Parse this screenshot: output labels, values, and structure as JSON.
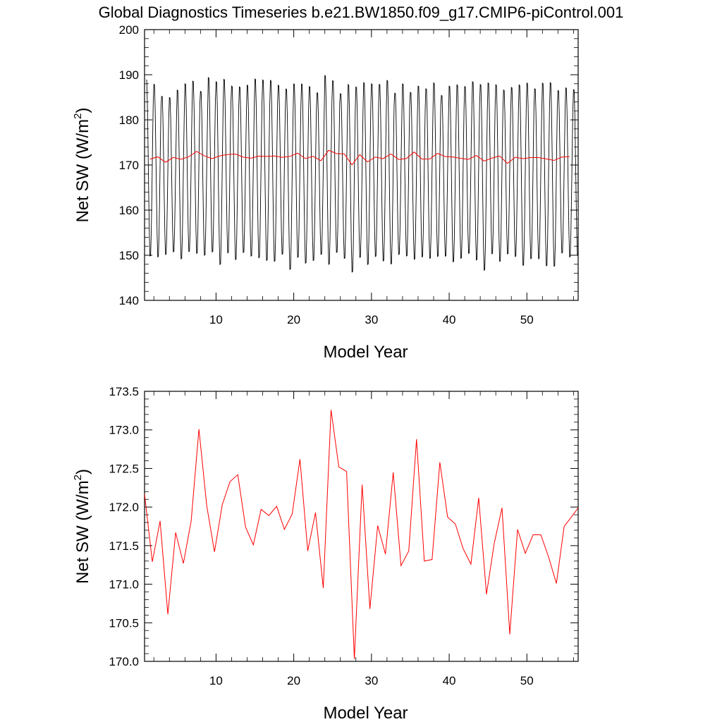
{
  "figure": {
    "title": "Global Diagnostics Timeseries b.e21.BW1850.f09_g17.CMIP6-piControl.001"
  },
  "chart_data": [
    {
      "type": "line",
      "xlabel": "Model Year",
      "ylabel": "Net SW (W/m",
      "ylabel_sup": "2",
      "ylabel_close": ")",
      "xlim": [
        0.8,
        56.6
      ],
      "ylim": [
        140,
        200
      ],
      "xticks": [
        10,
        20,
        30,
        40,
        50
      ],
      "xtick_labels": [
        "10",
        "20",
        "30",
        "40",
        "50"
      ],
      "yticks": [
        140,
        150,
        160,
        170,
        180,
        190,
        200
      ],
      "ytick_labels": [
        "140",
        "150",
        "160",
        "170",
        "180",
        "190",
        "200"
      ],
      "grid": false,
      "series": [
        {
          "color": "#000000",
          "kind": "monthly",
          "seasonal_max": [
            189.5,
            188.5,
            185.8,
            185.5,
            187.2,
            188.6,
            189.2,
            186.9,
            190.0,
            189.1,
            189.6,
            188.1,
            187.9,
            188.3,
            189.7,
            189.5,
            189.4,
            188.3,
            187.5,
            188.6,
            188.6,
            188.0,
            186.6,
            190.5,
            189.3,
            186.4,
            188.5,
            187.9,
            188.9,
            188.6,
            188.5,
            189.4,
            186.5,
            188.6,
            186.7,
            188.1,
            187.5,
            188.8,
            186.0,
            188.1,
            188.4,
            188.0,
            189.1,
            188.5,
            188.8,
            188.4,
            187.2,
            187.8,
            188.4,
            188.8,
            187.5,
            188.8,
            188.9,
            187.1,
            187.7,
            187.3
          ],
          "seasonal_min": [
            149.2,
            149.0,
            149.6,
            150.2,
            148.6,
            150.2,
            149.8,
            149.4,
            150.1,
            147.3,
            149.9,
            148.4,
            150.0,
            149.2,
            148.8,
            148.2,
            148.0,
            149.6,
            146.2,
            148.9,
            147.6,
            148.2,
            149.6,
            147.3,
            150.0,
            148.7,
            145.6,
            148.9,
            147.3,
            149.1,
            148.1,
            147.4,
            149.6,
            149.2,
            148.5,
            149.0,
            148.7,
            149.1,
            149.2,
            147.9,
            148.7,
            149.8,
            148.3,
            146.0,
            149.7,
            148.0,
            149.7,
            149.1,
            147.1,
            148.6,
            148.6,
            147.0,
            146.9,
            149.9,
            149.0,
            149.5
          ]
        },
        {
          "color": "#ff0000",
          "kind": "annual",
          "x": [
            1.5,
            2.5,
            3.5,
            4.5,
            5.5,
            6.5,
            7.5,
            8.5,
            9.5,
            10.5,
            11.5,
            12.5,
            13.5,
            14.5,
            15.5,
            16.5,
            17.5,
            18.5,
            19.5,
            20.5,
            21.5,
            22.5,
            23.5,
            24.5,
            25.5,
            26.5,
            27.5,
            28.5,
            29.5,
            30.5,
            31.5,
            32.5,
            33.5,
            34.5,
            35.5,
            36.5,
            37.5,
            38.5,
            39.5,
            40.5,
            41.5,
            42.5,
            43.5,
            44.5,
            45.5,
            46.5,
            47.5,
            48.5,
            49.5,
            50.5,
            51.5,
            52.5,
            53.5,
            54.5,
            55.5
          ]
        }
      ]
    },
    {
      "type": "line",
      "xlabel": "Model Year",
      "ylabel": "Net SW (W/m",
      "ylabel_sup": "2",
      "ylabel_close": ")",
      "xlim": [
        0.8,
        56.6
      ],
      "ylim": [
        170.0,
        173.5
      ],
      "xticks": [
        10,
        20,
        30,
        40,
        50
      ],
      "xtick_labels": [
        "10",
        "20",
        "30",
        "40",
        "50"
      ],
      "yticks": [
        170.0,
        170.5,
        171.0,
        171.5,
        172.0,
        172.5,
        173.0,
        173.5
      ],
      "ytick_labels": [
        "170.0",
        "170.5",
        "171.0",
        "171.5",
        "172.0",
        "172.5",
        "173.0",
        "173.5"
      ],
      "grid": false,
      "series": [
        {
          "color": "#ff0000",
          "x": [
            0.8,
            1.8,
            2.8,
            3.8,
            4.8,
            5.8,
            6.8,
            7.8,
            8.8,
            9.8,
            10.8,
            11.8,
            12.8,
            13.8,
            14.8,
            15.8,
            16.8,
            17.8,
            18.8,
            19.8,
            20.8,
            21.8,
            22.8,
            23.8,
            24.8,
            25.8,
            26.8,
            27.8,
            28.8,
            29.8,
            30.8,
            31.8,
            32.8,
            33.8,
            34.8,
            35.8,
            36.8,
            37.8,
            38.8,
            39.8,
            40.8,
            41.8,
            42.8,
            43.8,
            44.8,
            45.8,
            46.8,
            47.8,
            48.8,
            49.8,
            50.8,
            51.8,
            52.8,
            53.8,
            54.8,
            55.8,
            56.6
          ],
          "values": [
            172.17,
            171.29,
            171.82,
            170.61,
            171.67,
            171.27,
            171.82,
            173.01,
            172.02,
            171.42,
            172.03,
            172.33,
            172.42,
            171.74,
            171.51,
            171.97,
            171.89,
            172.01,
            171.71,
            171.91,
            172.62,
            171.43,
            171.93,
            170.95,
            173.26,
            172.52,
            172.46,
            170.03,
            172.29,
            170.68,
            171.76,
            171.39,
            172.45,
            171.24,
            171.43,
            172.88,
            171.3,
            171.32,
            172.58,
            171.87,
            171.78,
            171.46,
            171.26,
            172.12,
            170.87,
            171.53,
            171.99,
            170.35,
            171.71,
            171.4,
            171.64,
            171.64,
            171.35,
            171.01,
            171.75,
            171.88,
            171.99
          ]
        }
      ]
    }
  ]
}
